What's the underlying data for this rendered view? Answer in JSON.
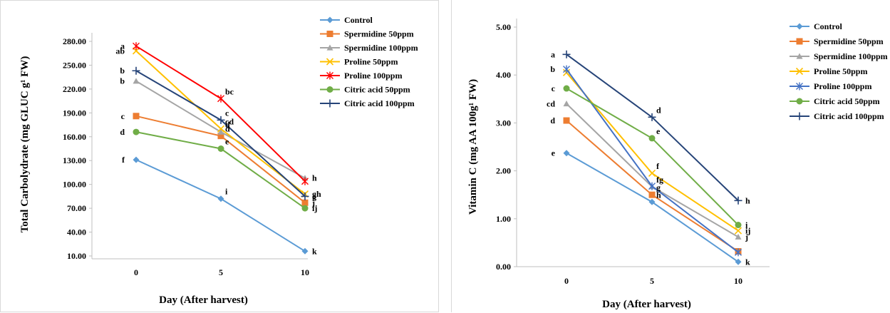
{
  "chart_data": [
    {
      "type": "line",
      "title": "",
      "xlabel": "Day (After harvest)",
      "ylabel": "Total Carbolydrate (mg GLUC g¹ FW)",
      "categories": [
        "0",
        "5",
        "10"
      ],
      "yticks": [
        "10.00",
        "40.00",
        "70.00",
        "100.00",
        "130.00",
        "160.00",
        "190.00",
        "220.00",
        "250.00",
        "280.00"
      ],
      "ylim": [
        10,
        280
      ],
      "grid": false,
      "legend_position": "top-right",
      "series": [
        {
          "name": "Control",
          "color": "#5b9bd5",
          "marker": "diamond",
          "values": [
            131,
            82,
            16
          ]
        },
        {
          "name": "Spermidine 50ppm",
          "color": "#ed7d31",
          "marker": "square",
          "values": [
            186,
            161,
            77
          ]
        },
        {
          "name": "Spermidine 100ppm",
          "color": "#a5a5a5",
          "marker": "triangle",
          "values": [
            230,
            166,
            108
          ]
        },
        {
          "name": "Proline 50ppm",
          "color": "#ffc000",
          "marker": "x",
          "values": [
            268,
            170,
            88
          ]
        },
        {
          "name": "Proline 100ppm",
          "color": "#ff0000",
          "marker": "star",
          "values": [
            274,
            208,
            104
          ]
        },
        {
          "name": "Citric acid 50ppm",
          "color": "#70ad47",
          "marker": "circle",
          "values": [
            166,
            145,
            70
          ]
        },
        {
          "name": "Citric acid 100ppm",
          "color": "#264478",
          "marker": "plus",
          "values": [
            243,
            181,
            85
          ]
        }
      ],
      "annotations": [
        {
          "text": "a",
          "series": 4,
          "point": 0
        },
        {
          "text": "ab",
          "series": 3,
          "point": 0
        },
        {
          "text": "b",
          "series": 6,
          "point": 0
        },
        {
          "text": "b",
          "series": 2,
          "point": 0
        },
        {
          "text": "c",
          "series": 1,
          "point": 0
        },
        {
          "text": "d",
          "series": 5,
          "point": 0
        },
        {
          "text": "f",
          "series": 0,
          "point": 0
        },
        {
          "text": "bc",
          "series": 4,
          "point": 1
        },
        {
          "text": "cd",
          "series": 3,
          "point": 1
        },
        {
          "text": "c",
          "series": 6,
          "point": 1
        },
        {
          "text": "d",
          "series": 2,
          "point": 1
        },
        {
          "text": "d",
          "series": 1,
          "point": 1
        },
        {
          "text": "e",
          "series": 5,
          "point": 1
        },
        {
          "text": "i",
          "series": 0,
          "point": 1
        },
        {
          "text": "h",
          "series": 2,
          "point": 2
        },
        {
          "text": "gh",
          "series": 3,
          "point": 2
        },
        {
          "text": "g",
          "series": 6,
          "point": 2
        },
        {
          "text": "ij",
          "series": 5,
          "point": 2
        },
        {
          "text": "j",
          "series": 1,
          "point": 2
        },
        {
          "text": "k",
          "series": 0,
          "point": 2
        }
      ]
    },
    {
      "type": "line",
      "title": "",
      "xlabel": "Day (After harvest)",
      "ylabel": "Vitamin C (mg AA 100g¹ FW)",
      "categories": [
        "0",
        "5",
        "10"
      ],
      "yticks": [
        "0.00",
        "1.00",
        "2.00",
        "3.00",
        "4.00",
        "5.00"
      ],
      "ylim": [
        0,
        5
      ],
      "grid": false,
      "legend_position": "top-right",
      "series": [
        {
          "name": "Control",
          "color": "#5b9bd5",
          "marker": "diamond",
          "values": [
            2.37,
            1.35,
            0.1
          ]
        },
        {
          "name": "Spermidine 50ppm",
          "color": "#ed7d31",
          "marker": "square",
          "values": [
            3.05,
            1.5,
            0.32
          ]
        },
        {
          "name": "Spermidine 100ppm",
          "color": "#a5a5a5",
          "marker": "triangle",
          "values": [
            3.4,
            1.67,
            0.62
          ]
        },
        {
          "name": "Proline 50ppm",
          "color": "#ffc000",
          "marker": "x",
          "values": [
            4.05,
            1.95,
            0.75
          ]
        },
        {
          "name": "Proline 100ppm",
          "color": "#4472c4",
          "marker": "star",
          "values": [
            4.12,
            1.68,
            0.3
          ]
        },
        {
          "name": "Citric acid 50ppm",
          "color": "#70ad47",
          "marker": "circle",
          "values": [
            3.72,
            2.68,
            0.87
          ]
        },
        {
          "name": "Citric acid 100ppm",
          "color": "#264478",
          "marker": "plus",
          "values": [
            4.43,
            3.12,
            1.38
          ]
        }
      ],
      "annotations": [
        {
          "text": "a",
          "series": 6,
          "point": 0
        },
        {
          "text": "b",
          "series": 4,
          "point": 0
        },
        {
          "text": "c",
          "series": 5,
          "point": 0
        },
        {
          "text": "cd",
          "series": 2,
          "point": 0
        },
        {
          "text": "d",
          "series": 1,
          "point": 0
        },
        {
          "text": "e",
          "series": 0,
          "point": 0
        },
        {
          "text": "d",
          "series": 6,
          "point": 1
        },
        {
          "text": "e",
          "series": 5,
          "point": 1
        },
        {
          "text": "f",
          "series": 3,
          "point": 1
        },
        {
          "text": "fg",
          "series": 2,
          "point": 1
        },
        {
          "text": "g",
          "series": 1,
          "point": 1
        },
        {
          "text": "h",
          "series": 0,
          "point": 1
        },
        {
          "text": "h",
          "series": 6,
          "point": 2
        },
        {
          "text": "i",
          "series": 5,
          "point": 2
        },
        {
          "text": "ij",
          "series": 3,
          "point": 2
        },
        {
          "text": "j",
          "series": 2,
          "point": 2
        },
        {
          "text": "k",
          "series": 0,
          "point": 2
        }
      ]
    }
  ]
}
